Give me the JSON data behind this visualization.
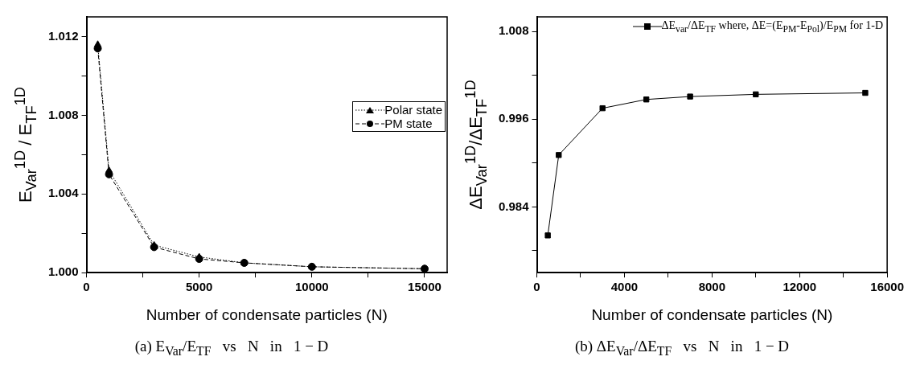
{
  "chart_data": [
    {
      "type": "line",
      "title": "(a) E$_{Var}$/E$_{TF}$   vs   N   in   1 − D",
      "xlabel": "Number of condensate particles (N)",
      "ylabel": "E$_{Var}$$^{1D}$ / E$_{TF}$$^{1D}$",
      "x": [
        500,
        1000,
        3000,
        5000,
        7000,
        10000,
        15000
      ],
      "series": [
        {
          "name": "Polar state",
          "color": "#000000",
          "marker": "triangle",
          "line_style": "dotted",
          "values": [
            1.0116,
            1.0052,
            1.0014,
            1.0008,
            1.0005,
            1.0003,
            1.0002
          ]
        },
        {
          "name": "PM state",
          "color": "#000000",
          "marker": "circle",
          "line_style": "dashed",
          "values": [
            1.0114,
            1.005,
            1.0013,
            1.0007,
            1.0005,
            1.0003,
            1.0002
          ]
        }
      ],
      "xlim": [
        0,
        16000
      ],
      "xticks": [
        0,
        {
          "value": 2500,
          "label": null
        },
        5000,
        {
          "value": 7500,
          "label": null
        },
        10000,
        {
          "value": 12500,
          "label": null
        },
        15000
      ],
      "ylim": [
        1.0,
        1.013
      ],
      "yticks": [
        {
          "value": 1.0,
          "label": "1.000"
        },
        {
          "value": 1.002,
          "label": null
        },
        1.004,
        {
          "value": 1.006,
          "label": null
        },
        1.008,
        {
          "value": 1.01,
          "label": null
        },
        1.012
      ],
      "grid": false,
      "legend": "right"
    },
    {
      "type": "line",
      "title": "(b) ΔE$_{Var}$/ΔE$_{TF}$   vs   N   in   1 − D",
      "xlabel": "Number of condensate particles (N)",
      "ylabel": "ΔE$_{Var}$$^{1D}$/ΔE$_{TF}$$^{1D}$",
      "x": [
        500,
        1000,
        3000,
        5000,
        7000,
        10000,
        15000
      ],
      "series": [
        {
          "name": "ΔE$_{var}$/ΔE$_{TF}$ where, ΔE=(E$_{PM}$-E$_{Pol}$)/E$_{PM}$ for 1-D",
          "color": "#000000",
          "marker": "square",
          "line_style": "solid",
          "values": [
            0.9801,
            0.9911,
            0.9975,
            0.9987,
            0.9991,
            0.9994,
            0.9996
          ]
        }
      ],
      "xlim": [
        0,
        16000
      ],
      "xticks": [
        0,
        {
          "value": 2000,
          "label": null
        },
        4000,
        {
          "value": 6000,
          "label": null
        },
        8000,
        {
          "value": 10000,
          "label": null
        },
        12000,
        {
          "value": 14000,
          "label": null
        },
        16000
      ],
      "ylim": [
        0.975,
        1.01
      ],
      "yticks": [
        {
          "value": 0.978,
          "label": null
        },
        0.984,
        {
          "value": 0.99,
          "label": null
        },
        0.996,
        {
          "value": 1.002,
          "label": null
        },
        1.008
      ],
      "grid": false,
      "legend": "top right"
    }
  ]
}
